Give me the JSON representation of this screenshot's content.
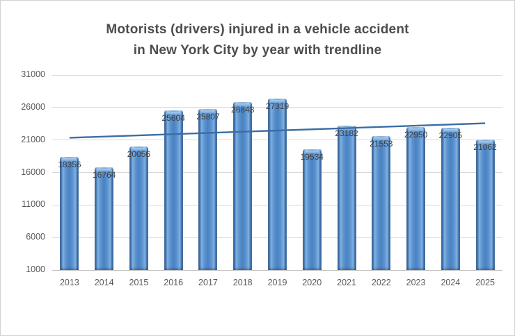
{
  "chart_data": {
    "type": "bar",
    "title_line1": "Motorists (drivers) injured in a vehicle accident",
    "title_line2": "in New York City by year with trendline",
    "categories": [
      "2013",
      "2014",
      "2015",
      "2016",
      "2017",
      "2018",
      "2019",
      "2020",
      "2021",
      "2022",
      "2023",
      "2024",
      "2025"
    ],
    "values": [
      18356,
      16764,
      20056,
      25604,
      25807,
      26843,
      27319,
      19534,
      23182,
      21553,
      22950,
      22905,
      21062
    ],
    "data_labels": [
      "18356",
      "16764",
      "20056",
      "25604",
      "25807",
      "26843",
      "27319",
      "19534",
      "23182",
      "21553",
      "22950",
      "22905",
      "21062"
    ],
    "y_ticks": [
      31000,
      26000,
      21000,
      16000,
      11000,
      6000,
      1000
    ],
    "ylim": [
      1000,
      31000
    ],
    "xlabel": "",
    "ylabel": "",
    "grid": true,
    "legend": "none",
    "trendline": true,
    "colors": {
      "bar_fill": "#4a82c2",
      "bar_edge": "#295689",
      "bar_highlight": "#a9cdf0",
      "trendline": "#3a6da6",
      "gridline": "#d9d9d9",
      "axis_text": "#595959",
      "data_label_text": "#404040",
      "title_text": "#4c4c4c",
      "background": "#ffffff"
    }
  }
}
